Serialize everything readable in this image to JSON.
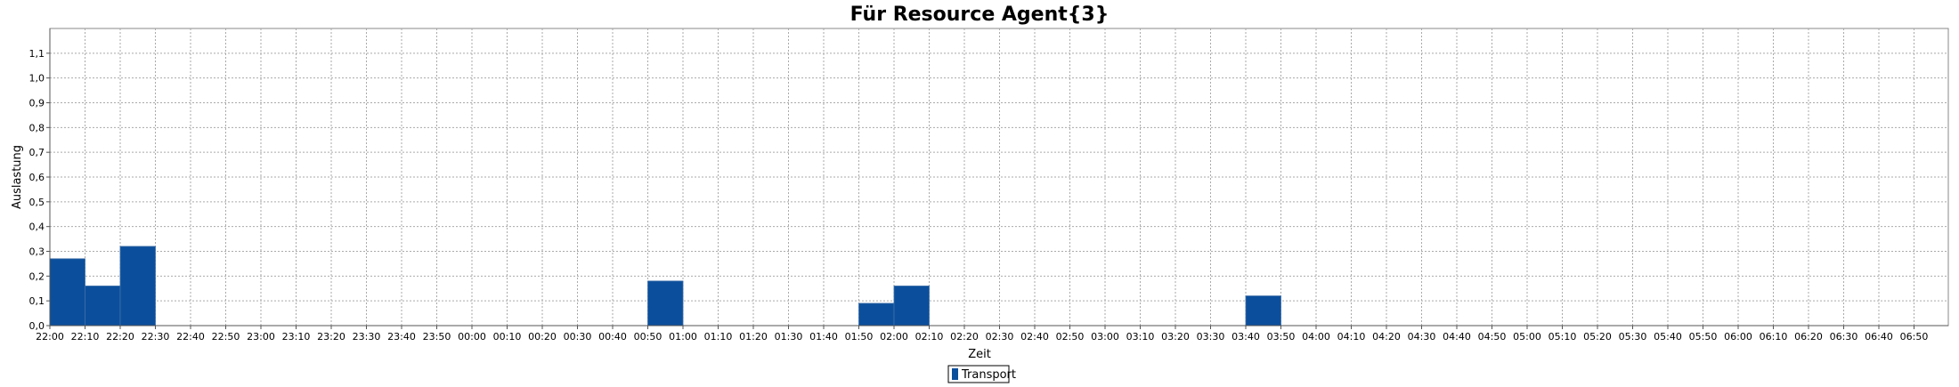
{
  "chart_data": {
    "type": "bar",
    "title": "Für Resource Agent{3}",
    "xlabel": "Zeit",
    "ylabel": "Auslastung",
    "ylim": [
      0,
      1.2
    ],
    "grid": true,
    "legend_position": "bottom",
    "yticks": [
      "0,0",
      "0,1",
      "0,2",
      "0,3",
      "0,4",
      "0,5",
      "0,6",
      "0,7",
      "0,8",
      "0,9",
      "1,0",
      "1,1"
    ],
    "categories": [
      "22:00",
      "22:10",
      "22:20",
      "22:30",
      "22:40",
      "22:50",
      "23:00",
      "23:10",
      "23:20",
      "23:30",
      "23:40",
      "23:50",
      "00:00",
      "00:10",
      "00:20",
      "00:30",
      "00:40",
      "00:50",
      "01:00",
      "01:10",
      "01:20",
      "01:30",
      "01:40",
      "01:50",
      "02:00",
      "02:10",
      "02:20",
      "02:30",
      "02:40",
      "02:50",
      "03:00",
      "03:10",
      "03:20",
      "03:30",
      "03:40",
      "03:50",
      "04:00",
      "04:10",
      "04:20",
      "04:30",
      "04:40",
      "04:50",
      "05:00",
      "05:10",
      "05:20",
      "05:30",
      "05:40",
      "05:50",
      "06:00",
      "06:10",
      "06:20",
      "06:30",
      "06:40",
      "06:50"
    ],
    "series": [
      {
        "name": "Transport",
        "color": "#0b4f9c",
        "bars": [
          {
            "start": "22:00",
            "end": "22:10",
            "value": 0.27
          },
          {
            "start": "22:10",
            "end": "22:20",
            "value": 0.16
          },
          {
            "start": "22:20",
            "end": "22:30",
            "value": 0.32
          },
          {
            "start": "00:50",
            "end": "01:00",
            "value": 0.18
          },
          {
            "start": "01:50",
            "end": "02:00",
            "value": 0.09
          },
          {
            "start": "02:00",
            "end": "02:10",
            "value": 0.16
          },
          {
            "start": "03:40",
            "end": "03:50",
            "value": 0.12
          }
        ]
      }
    ]
  }
}
